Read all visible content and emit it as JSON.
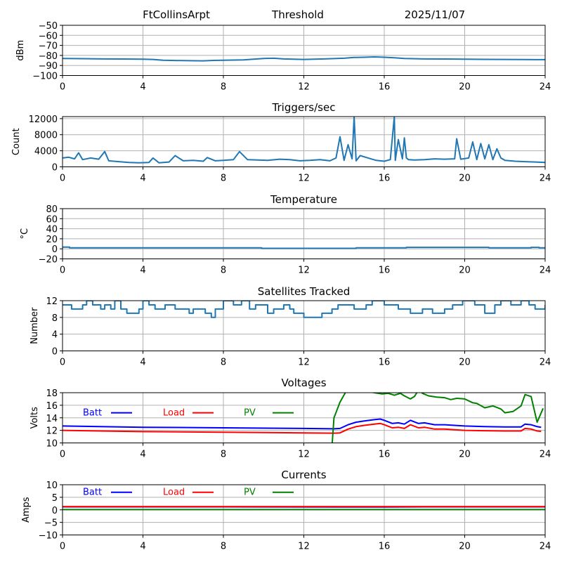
{
  "header": {
    "station": "FtCollinsArpt",
    "mode": "Threshold",
    "date": "2025/11/07"
  },
  "chart_data": [
    {
      "id": "threshold",
      "type": "line",
      "title": "",
      "xlabel": "",
      "ylabel": "dBm",
      "xlim": [
        0,
        24
      ],
      "ylim": [
        -100,
        -50
      ],
      "xticks": [
        0,
        4,
        8,
        12,
        16,
        20,
        24
      ],
      "xtick_labels": [
        "0",
        "4",
        "8",
        "12",
        "16",
        "20",
        "24"
      ],
      "yticks": [
        -50,
        -60,
        -70,
        -80,
        -90,
        -100
      ],
      "ytick_labels": [
        "−50",
        "−60",
        "−70",
        "−80",
        "−90",
        "−100"
      ],
      "grid": true,
      "series": [
        {
          "name": "Threshold",
          "color": "#1f77b4",
          "x": [
            0,
            1,
            2,
            3,
            4,
            4.5,
            5,
            6,
            7,
            7.5,
            8,
            8.5,
            9,
            9.5,
            10,
            10.5,
            11,
            12,
            13,
            14,
            14.5,
            15,
            15.5,
            16,
            16.5,
            17,
            18,
            19,
            20,
            21,
            22,
            23,
            24
          ],
          "y": [
            -83,
            -83.2,
            -83.5,
            -83.6,
            -83.7,
            -84,
            -84.8,
            -85.2,
            -85.4,
            -85,
            -84.8,
            -84.6,
            -84.5,
            -83.8,
            -83,
            -82.8,
            -83.5,
            -84,
            -83.5,
            -82.8,
            -82,
            -81.8,
            -81.5,
            -81.8,
            -82.3,
            -83,
            -83.5,
            -83.6,
            -83.8,
            -83.9,
            -84,
            -84.1,
            -84.2
          ]
        }
      ]
    },
    {
      "id": "triggers",
      "type": "line",
      "title": "Triggers/sec",
      "xlabel": "",
      "ylabel": "Count",
      "xlim": [
        0,
        24
      ],
      "ylim": [
        0,
        12500
      ],
      "xticks": [
        0,
        4,
        8,
        12,
        16,
        20,
        24
      ],
      "xtick_labels": [
        "0",
        "4",
        "8",
        "12",
        "16",
        "20",
        "24"
      ],
      "yticks": [
        0,
        4000,
        8000,
        12000
      ],
      "ytick_labels": [
        "0",
        "4000",
        "8000",
        "12000"
      ],
      "grid": true,
      "series": [
        {
          "name": "Triggers",
          "color": "#1f77b4",
          "x": [
            0,
            0.3,
            0.6,
            0.8,
            1.0,
            1.4,
            1.8,
            2.1,
            2.3,
            2.8,
            3.3,
            3.8,
            4.3,
            4.5,
            4.8,
            5.3,
            5.6,
            6.0,
            6.5,
            7.0,
            7.2,
            7.6,
            8.0,
            8.5,
            8.8,
            9.2,
            9.7,
            10.2,
            10.8,
            11.3,
            11.8,
            12.3,
            12.8,
            13.3,
            13.6,
            13.8,
            14.0,
            14.2,
            14.4,
            14.5,
            14.6,
            14.8,
            15.2,
            15.6,
            16.0,
            16.3,
            16.5,
            16.55,
            16.7,
            16.9,
            17.0,
            17.1,
            17.2,
            17.5,
            18.0,
            18.5,
            19.0,
            19.5,
            19.6,
            19.8,
            20.2,
            20.4,
            20.6,
            20.8,
            21.0,
            21.2,
            21.4,
            21.6,
            21.8,
            22.0,
            22.5,
            23.0,
            23.5,
            24.0
          ],
          "y": [
            2200,
            2400,
            2000,
            3500,
            1800,
            2200,
            1900,
            3800,
            1500,
            1300,
            1100,
            1000,
            1100,
            2200,
            1000,
            1200,
            2800,
            1500,
            1600,
            1400,
            2300,
            1500,
            1600,
            1800,
            3800,
            1800,
            1700,
            1600,
            1900,
            1800,
            1500,
            1600,
            1800,
            1500,
            2200,
            7500,
            1600,
            5500,
            2000,
            12500,
            1500,
            2800,
            2200,
            1600,
            1400,
            1800,
            12500,
            1600,
            6800,
            2000,
            7200,
            2200,
            1800,
            1700,
            1800,
            2000,
            1900,
            2000,
            7000,
            1900,
            2200,
            6200,
            1800,
            5800,
            2000,
            5500,
            1800,
            4500,
            2200,
            1600,
            1400,
            1300,
            1200,
            1100
          ]
        }
      ]
    },
    {
      "id": "temperature",
      "type": "line",
      "title": "Temperature",
      "xlabel": "",
      "ylabel": "°C",
      "xlim": [
        0,
        24
      ],
      "ylim": [
        -20,
        80
      ],
      "xticks": [
        0,
        4,
        8,
        12,
        16,
        20,
        24
      ],
      "xtick_labels": [
        "0",
        "4",
        "8",
        "12",
        "16",
        "20",
        "24"
      ],
      "yticks": [
        -20,
        0,
        20,
        40,
        60,
        80
      ],
      "ytick_labels": [
        "−20",
        "0",
        "20",
        "40",
        "60",
        "80"
      ],
      "grid": true,
      "series": [
        {
          "name": "Temperature",
          "color": "#1f77b4",
          "x": [
            0,
            0.35,
            0.35,
            9.9,
            9.9,
            14.6,
            14.6,
            17.1,
            17.1,
            21.2,
            21.2,
            23.3,
            23.3,
            23.7,
            23.7,
            24
          ],
          "y": [
            3.5,
            3.5,
            2,
            2,
            1,
            1,
            2,
            2,
            3,
            3,
            2,
            2,
            3,
            3,
            2,
            2
          ]
        }
      ]
    },
    {
      "id": "satellites",
      "type": "line",
      "title": "Satellites Tracked",
      "xlabel": "",
      "ylabel": "Number",
      "xlim": [
        0,
        24
      ],
      "ylim": [
        0,
        12
      ],
      "xticks": [
        0,
        4,
        8,
        12,
        16,
        20,
        24
      ],
      "xtick_labels": [
        "0",
        "4",
        "8",
        "12",
        "16",
        "20",
        "24"
      ],
      "yticks": [
        0,
        4,
        8,
        12
      ],
      "ytick_labels": [
        "0",
        "4",
        "8",
        "12"
      ],
      "grid": true,
      "step": true,
      "series": [
        {
          "name": "Satellites",
          "color": "#1f77b4",
          "x": [
            0,
            0.45,
            1.0,
            1.2,
            1.5,
            1.9,
            2.1,
            2.4,
            2.6,
            2.9,
            3.2,
            3.8,
            4.0,
            4.3,
            4.6,
            5.1,
            5.6,
            6.3,
            6.5,
            7.1,
            7.4,
            7.6,
            8.0,
            8.5,
            8.9,
            9.3,
            9.6,
            10.2,
            10.5,
            11.0,
            11.3,
            11.5,
            12.0,
            12.5,
            12.9,
            13.4,
            13.7,
            14.0,
            14.5,
            15.1,
            15.4,
            16.0,
            16.7,
            17.3,
            17.9,
            18.4,
            19.0,
            19.4,
            19.9,
            20.0,
            20.5,
            21.0,
            21.5,
            21.8,
            22.3,
            22.8,
            23.2,
            23.5,
            24.0
          ],
          "y": [
            11,
            10,
            11,
            12,
            11,
            10,
            11,
            10,
            12,
            10,
            9,
            10,
            12,
            11,
            10,
            11,
            10,
            9,
            10,
            9,
            8,
            10,
            12,
            11,
            12,
            10,
            11,
            9,
            10,
            11,
            10,
            9,
            8,
            8,
            9,
            10,
            11,
            11,
            10,
            11,
            12,
            11,
            10,
            9,
            10,
            9,
            10,
            11,
            12,
            12,
            11,
            9,
            11,
            12,
            11,
            12,
            11,
            10,
            11
          ]
        }
      ]
    },
    {
      "id": "voltages",
      "type": "line",
      "title": "Voltages",
      "xlabel": "",
      "ylabel": "Volts",
      "xlim": [
        0,
        24
      ],
      "ylim": [
        10,
        18
      ],
      "xticks": [
        0,
        4,
        8,
        12,
        16,
        20,
        24
      ],
      "xtick_labels": [
        "0",
        "4",
        "8",
        "12",
        "16",
        "20",
        "24"
      ],
      "yticks": [
        10,
        12,
        14,
        16,
        18
      ],
      "ytick_labels": [
        "10",
        "12",
        "14",
        "16",
        "18"
      ],
      "grid": true,
      "legend": [
        {
          "label": "Batt",
          "color": "#0000ff"
        },
        {
          "label": "Load",
          "color": "#ff0000"
        },
        {
          "label": "PV",
          "color": "#008000"
        }
      ],
      "series": [
        {
          "name": "Batt",
          "color": "#0000ff",
          "x": [
            0,
            4,
            8,
            12,
            13.5,
            13.8,
            14.2,
            14.6,
            15.0,
            15.5,
            15.8,
            16.0,
            16.4,
            16.7,
            17.0,
            17.3,
            17.7,
            18.0,
            18.5,
            19.0,
            19.5,
            20.0,
            21.0,
            22.0,
            22.8,
            23.0,
            23.3,
            23.6,
            23.8
          ],
          "y": [
            12.7,
            12.5,
            12.4,
            12.3,
            12.25,
            12.3,
            12.9,
            13.3,
            13.5,
            13.7,
            13.8,
            13.6,
            13.1,
            13.2,
            13.0,
            13.6,
            13.1,
            13.2,
            12.9,
            12.9,
            12.8,
            12.7,
            12.6,
            12.55,
            12.55,
            13.0,
            12.9,
            12.6,
            12.5
          ]
        },
        {
          "name": "Load",
          "color": "#ff0000",
          "x": [
            0,
            4,
            8,
            12,
            13.5,
            13.8,
            14.2,
            14.6,
            15.0,
            15.5,
            15.8,
            16.0,
            16.4,
            16.7,
            17.0,
            17.3,
            17.7,
            18.0,
            18.5,
            19.0,
            19.5,
            20.0,
            21.0,
            22.0,
            22.8,
            23.0,
            23.3,
            23.6,
            23.8
          ],
          "y": [
            12.0,
            11.8,
            11.7,
            11.6,
            11.55,
            11.6,
            12.2,
            12.6,
            12.8,
            13.0,
            13.1,
            12.9,
            12.4,
            12.5,
            12.3,
            12.9,
            12.4,
            12.5,
            12.2,
            12.2,
            12.1,
            12.0,
            11.95,
            11.9,
            11.9,
            12.3,
            12.2,
            11.9,
            11.85
          ]
        },
        {
          "name": "PV",
          "color": "#008000",
          "x": [
            13.4,
            13.5,
            13.8,
            14.1,
            14.5,
            15.0,
            15.5,
            15.9,
            16.2,
            16.5,
            16.8,
            17.0,
            17.3,
            17.5,
            17.7,
            17.9,
            18.2,
            18.6,
            19.0,
            19.3,
            19.6,
            20.0,
            20.4,
            20.6,
            21.0,
            21.4,
            21.8,
            22.0,
            22.4,
            22.8,
            23.0,
            23.3,
            23.6,
            23.9
          ],
          "y": [
            9.5,
            14.0,
            16.5,
            18.2,
            18.5,
            18.3,
            18.0,
            17.8,
            17.9,
            17.6,
            17.9,
            17.5,
            17.0,
            17.4,
            18.4,
            17.9,
            17.5,
            17.3,
            17.2,
            16.9,
            17.1,
            17.0,
            16.4,
            16.3,
            15.6,
            15.9,
            15.4,
            14.8,
            15.0,
            15.9,
            17.7,
            17.4,
            13.3,
            15.5
          ]
        }
      ]
    },
    {
      "id": "currents",
      "type": "line",
      "title": "Currents",
      "xlabel": "",
      "ylabel": "Amps",
      "xlim": [
        0,
        24
      ],
      "ylim": [
        -10,
        10
      ],
      "xticks": [
        0,
        4,
        8,
        12,
        16,
        20,
        24
      ],
      "xtick_labels": [
        "0",
        "4",
        "8",
        "12",
        "16",
        "20",
        "24"
      ],
      "yticks": [
        -10,
        -5,
        0,
        5,
        10
      ],
      "ytick_labels": [
        "−10",
        "−5",
        "0",
        "5",
        "10"
      ],
      "grid": true,
      "legend": [
        {
          "label": "Batt",
          "color": "#0000ff"
        },
        {
          "label": "Load",
          "color": "#ff0000"
        },
        {
          "label": "PV",
          "color": "#008000"
        }
      ],
      "series": [
        {
          "name": "Batt",
          "color": "#0000ff",
          "x": [
            0,
            8,
            14,
            16,
            18,
            24
          ],
          "y": [
            1.2,
            1.2,
            1.1,
            1.1,
            1.2,
            1.2
          ]
        },
        {
          "name": "Load",
          "color": "#ff0000",
          "x": [
            0,
            4,
            8,
            12,
            16,
            20,
            24
          ],
          "y": [
            1.3,
            1.3,
            1.3,
            1.3,
            1.3,
            1.3,
            1.3
          ]
        },
        {
          "name": "PV",
          "color": "#008000",
          "x": [
            0,
            24
          ],
          "y": [
            0.1,
            0.1
          ]
        }
      ]
    }
  ]
}
